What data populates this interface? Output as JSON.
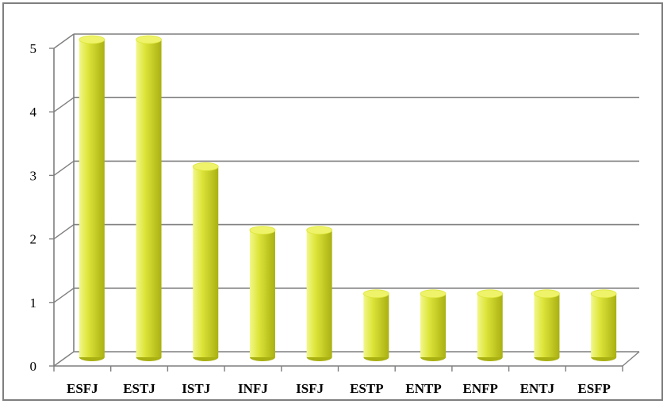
{
  "chart_data": {
    "type": "bar",
    "style": "3d-cylinder",
    "categories": [
      "ESFJ",
      "ESTJ",
      "ISTJ",
      "INFJ",
      "ISFJ",
      "ESTP",
      "ENTP",
      "ENFP",
      "ENTJ",
      "ESFP"
    ],
    "values": [
      5,
      5,
      3,
      2,
      2,
      1,
      1,
      1,
      1,
      1
    ],
    "ylim": [
      0,
      5
    ],
    "yticks": [
      "0",
      "1",
      "2",
      "3",
      "4",
      "5"
    ],
    "grid": true,
    "legend": "none",
    "colors": {
      "bar_light": "#f2f78a",
      "bar_mid": "#dde53a",
      "bar_dark": "#a9b012",
      "bar_top": "#eef36a",
      "grid": "#7f7f7f"
    }
  }
}
